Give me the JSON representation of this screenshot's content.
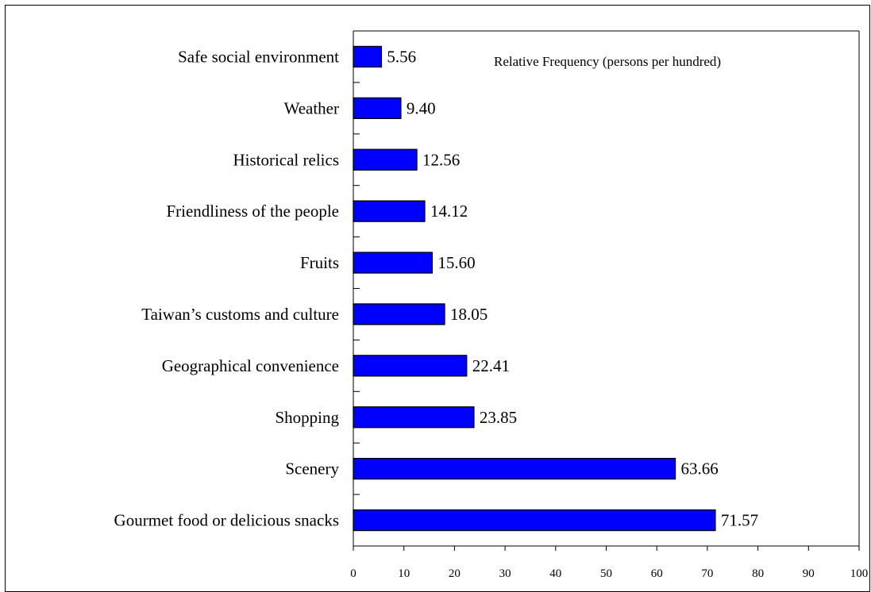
{
  "chart_data": {
    "type": "bar",
    "orientation": "horizontal",
    "title": "Relative Frequency (persons per hundred)",
    "xlabel": "",
    "ylabel": "",
    "xlim": [
      0,
      100
    ],
    "x_ticks": [
      0,
      10,
      20,
      30,
      40,
      50,
      60,
      70,
      80,
      90,
      100
    ],
    "grid": false,
    "legend": "none",
    "bar_color": "#0000FF",
    "categories": [
      "Safe social environment",
      "Weather",
      "Historical relics",
      "Friendliness of the people",
      "Fruits",
      "Taiwan’s customs and culture",
      "Geographical convenience",
      "Shopping",
      "Scenery",
      "Gourmet food or delicious snacks"
    ],
    "values": [
      5.56,
      9.4,
      12.56,
      14.12,
      15.6,
      18.05,
      22.41,
      23.85,
      63.66,
      71.57
    ],
    "value_labels": [
      "5.56",
      "9.40",
      "12.56",
      "14.12",
      "15.60",
      "18.05",
      "22.41",
      "23.85",
      "63.66",
      "71.57"
    ]
  }
}
